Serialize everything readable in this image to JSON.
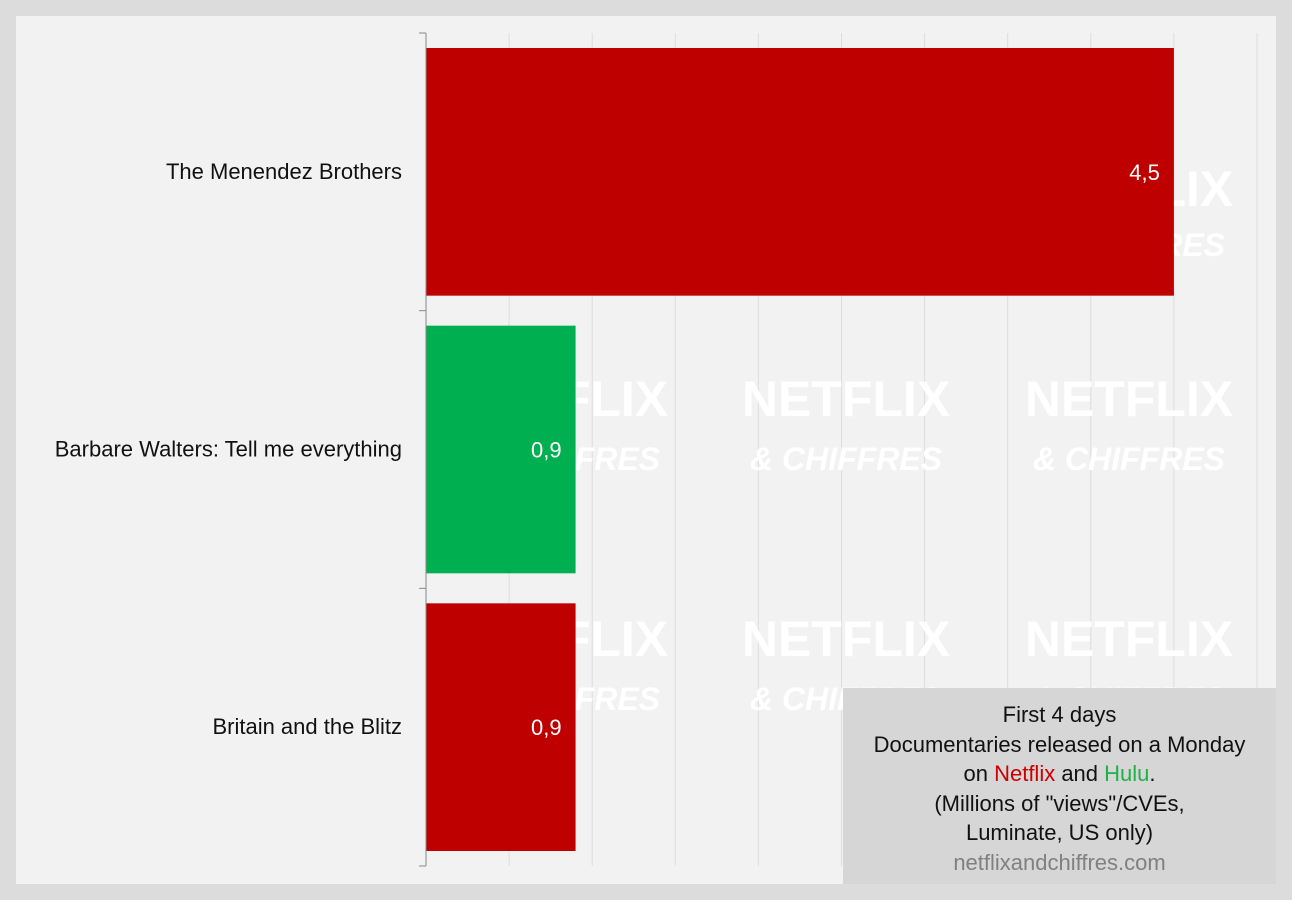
{
  "chart_data": {
    "type": "bar",
    "orientation": "horizontal",
    "categories": [
      "The Menendez Brothers",
      "Barbare Walters: Tell me everything",
      "Britain and the Blitz"
    ],
    "values": [
      4.5,
      0.9,
      0.9
    ],
    "value_labels": [
      "4,5",
      "0,9",
      "0,9"
    ],
    "bar_colors": [
      "#bf0000",
      "#00b050",
      "#bf0000"
    ],
    "xlim": [
      0,
      5
    ],
    "grid": true,
    "xlabel": "",
    "ylabel": ""
  },
  "caption": {
    "line1": "First 4 days",
    "line2": "Documentaries released on a Monday",
    "line3_pre": "on ",
    "line3_netflix": "Netflix",
    "line3_mid": " and ",
    "line3_hulu": "Hulu",
    "line3_post": ".",
    "line4": "(Millions of \"views\"/CVEs,",
    "line5": "Luminate, US only)",
    "source": "netflixandchiffres.com"
  },
  "watermark": {
    "main": "NETFLIX",
    "sub": "& CHIFFRES"
  },
  "colors": {
    "netflix": "#cc0000",
    "hulu": "#1fb14a",
    "background": "#f2f2f2"
  }
}
